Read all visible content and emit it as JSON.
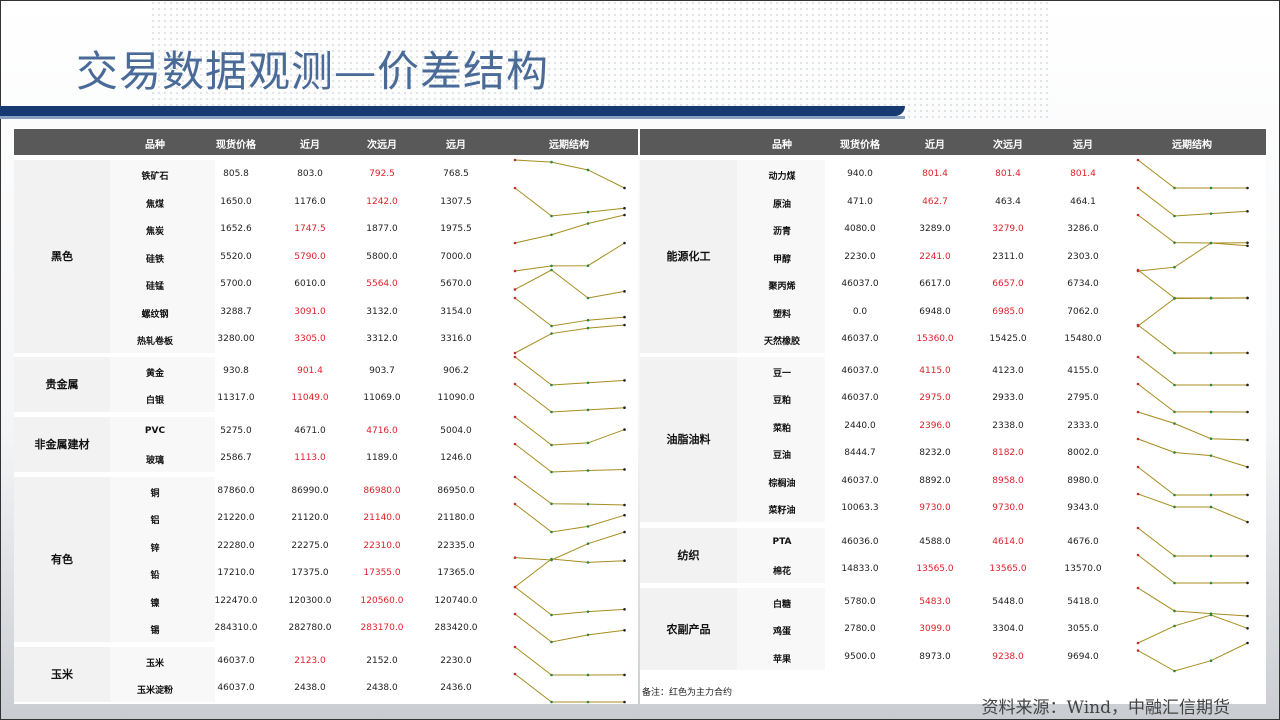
{
  "title": "交易数据观测—价差结构",
  "colors": {
    "header_bg": "#595959",
    "main_contract": "#e0202a",
    "title": "#4a6b98",
    "title_bar": "#173a72",
    "sparkline": "#a88d1e"
  },
  "columns": [
    "品种",
    "现货价格",
    "近月",
    "次远月",
    "远月",
    "远期结构"
  ],
  "left_table": [
    {
      "group": "黑色",
      "rows": [
        {
          "name": "铁矿石",
          "values": [
            "805.8",
            "803.0",
            "792.5",
            "768.5"
          ],
          "main": [
            2
          ]
        },
        {
          "name": "焦煤",
          "values": [
            "1650.0",
            "1176.0",
            "1242.0",
            "1307.5"
          ],
          "main": [
            2
          ]
        },
        {
          "name": "焦炭",
          "values": [
            "1652.6",
            "1747.5",
            "1877.0",
            "1975.5"
          ],
          "main": [
            1
          ]
        },
        {
          "name": "硅铁",
          "values": [
            "5520.0",
            "5790.0",
            "5800.0",
            "7000.0"
          ],
          "main": [
            1
          ]
        },
        {
          "name": "硅锰",
          "values": [
            "5700.0",
            "6010.0",
            "5564.0",
            "5670.0"
          ],
          "main": [
            2
          ]
        },
        {
          "name": "螺纹钢",
          "values": [
            "3288.7",
            "3091.0",
            "3132.0",
            "3154.0"
          ],
          "main": [
            1
          ]
        },
        {
          "name": "热轧卷板",
          "values": [
            "3280.00",
            "3305.0",
            "3312.0",
            "3316.0"
          ],
          "main": [
            1
          ]
        }
      ]
    },
    {
      "group": "贵金属",
      "rows": [
        {
          "name": "黄金",
          "values": [
            "930.8",
            "901.4",
            "903.7",
            "906.2"
          ],
          "main": [
            1
          ]
        },
        {
          "name": "白银",
          "values": [
            "11317.0",
            "11049.0",
            "11069.0",
            "11090.0"
          ],
          "main": [
            1
          ]
        }
      ]
    },
    {
      "group": "非金属建材",
      "rows": [
        {
          "name": "PVC",
          "values": [
            "5275.0",
            "4671.0",
            "4716.0",
            "5004.0"
          ],
          "main": [
            2
          ]
        },
        {
          "name": "玻璃",
          "values": [
            "2586.7",
            "1113.0",
            "1189.0",
            "1246.0"
          ],
          "main": [
            1
          ]
        }
      ]
    },
    {
      "group": "有色",
      "rows": [
        {
          "name": "铜",
          "values": [
            "87860.0",
            "86990.0",
            "86980.0",
            "86950.0"
          ],
          "main": [
            2
          ]
        },
        {
          "name": "铝",
          "values": [
            "21220.0",
            "21120.0",
            "21140.0",
            "21180.0"
          ],
          "main": [
            2
          ]
        },
        {
          "name": "锌",
          "values": [
            "22280.0",
            "22275.0",
            "22310.0",
            "22335.0"
          ],
          "main": [
            2
          ]
        },
        {
          "name": "铅",
          "values": [
            "17210.0",
            "17375.0",
            "17355.0",
            "17365.0"
          ],
          "main": [
            2
          ]
        },
        {
          "name": "镍",
          "values": [
            "122470.0",
            "120300.0",
            "120560.0",
            "120740.0"
          ],
          "main": [
            2
          ]
        },
        {
          "name": "锡",
          "values": [
            "284310.0",
            "282780.0",
            "283170.0",
            "283420.0"
          ],
          "main": [
            2
          ]
        }
      ]
    },
    {
      "group": "玉米",
      "rows": [
        {
          "name": "玉米",
          "values": [
            "46037.0",
            "2123.0",
            "2152.0",
            "2230.0"
          ],
          "main": [
            1
          ]
        },
        {
          "name": "玉米淀粉",
          "values": [
            "46037.0",
            "2438.0",
            "2438.0",
            "2436.0"
          ],
          "main": []
        }
      ]
    }
  ],
  "right_table": [
    {
      "group": "能源化工",
      "rows": [
        {
          "name": "动力煤",
          "values": [
            "940.0",
            "801.4",
            "801.4",
            "801.4"
          ],
          "main": [
            1,
            2,
            3
          ]
        },
        {
          "name": "原油",
          "values": [
            "471.0",
            "462.7",
            "463.4",
            "464.1"
          ],
          "main": [
            1
          ]
        },
        {
          "name": "沥青",
          "values": [
            "4080.0",
            "3289.0",
            "3279.0",
            "3286.0"
          ],
          "main": [
            2
          ]
        },
        {
          "name": "甲醇",
          "values": [
            "2230.0",
            "2241.0",
            "2311.0",
            "2303.0"
          ],
          "main": [
            1
          ]
        },
        {
          "name": "聚丙烯",
          "values": [
            "46037.0",
            "6617.0",
            "6657.0",
            "6734.0"
          ],
          "main": [
            2
          ]
        },
        {
          "name": "塑料",
          "values": [
            "0.0",
            "6948.0",
            "6985.0",
            "7062.0"
          ],
          "main": [
            2
          ]
        },
        {
          "name": "天然橡胶",
          "values": [
            "46037.0",
            "15360.0",
            "15425.0",
            "15480.0"
          ],
          "main": [
            1
          ]
        }
      ]
    },
    {
      "group": "油脂油料",
      "rows": [
        {
          "name": "豆一",
          "values": [
            "46037.0",
            "4115.0",
            "4123.0",
            "4155.0"
          ],
          "main": [
            1
          ]
        },
        {
          "name": "豆粕",
          "values": [
            "46037.0",
            "2975.0",
            "2933.0",
            "2795.0"
          ],
          "main": [
            1
          ]
        },
        {
          "name": "菜粕",
          "values": [
            "2440.0",
            "2396.0",
            "2338.0",
            "2333.0"
          ],
          "main": [
            1
          ]
        },
        {
          "name": "豆油",
          "values": [
            "8444.7",
            "8232.0",
            "8182.0",
            "8002.0"
          ],
          "main": [
            2
          ]
        },
        {
          "name": "棕榈油",
          "values": [
            "46037.0",
            "8892.0",
            "8958.0",
            "8980.0"
          ],
          "main": [
            2
          ]
        },
        {
          "name": "菜籽油",
          "values": [
            "10063.3",
            "9730.0",
            "9730.0",
            "9343.0"
          ],
          "main": [
            1,
            2
          ]
        }
      ]
    },
    {
      "group": "纺织",
      "rows": [
        {
          "name": "PTA",
          "values": [
            "46036.0",
            "4588.0",
            "4614.0",
            "4676.0"
          ],
          "main": [
            2
          ]
        },
        {
          "name": "棉花",
          "values": [
            "14833.0",
            "13565.0",
            "13565.0",
            "13570.0"
          ],
          "main": [
            1,
            2
          ]
        }
      ]
    },
    {
      "group": "农副产品",
      "rows": [
        {
          "name": "白糖",
          "values": [
            "5780.0",
            "5483.0",
            "5448.0",
            "5418.0"
          ],
          "main": [
            1
          ]
        },
        {
          "name": "鸡蛋",
          "values": [
            "2780.0",
            "3099.0",
            "3304.0",
            "3055.0"
          ],
          "main": [
            1
          ]
        },
        {
          "name": "苹果",
          "values": [
            "9500.0",
            "8973.0",
            "9238.0",
            "9694.0"
          ],
          "main": [
            2
          ]
        }
      ]
    }
  ],
  "note": "备注：红色为主力合约",
  "source": "资料来源：Wind，中融汇信期货"
}
